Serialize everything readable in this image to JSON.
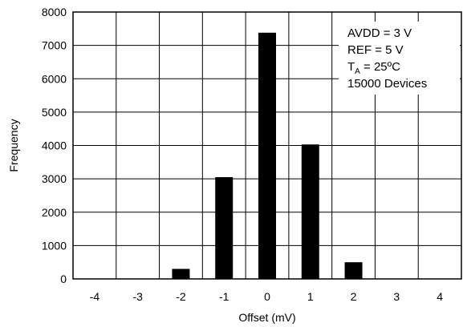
{
  "chart_data": {
    "type": "bar",
    "categories": [
      "-4",
      "-3",
      "-2",
      "-1",
      "0",
      "1",
      "2",
      "3",
      "4"
    ],
    "x": [
      -4,
      -3,
      -2,
      -1,
      0,
      1,
      2,
      3,
      4
    ],
    "values": [
      0,
      0,
      300,
      3050,
      7380,
      4030,
      500,
      0,
      0
    ],
    "title": "",
    "xlabel": "Offset (mV)",
    "ylabel": "Frequency",
    "ylim": [
      0,
      8000
    ],
    "xlim": [
      -4.5,
      4.5
    ],
    "yticks": [
      0,
      1000,
      2000,
      3000,
      4000,
      5000,
      6000,
      7000,
      8000
    ],
    "xticks": [
      -4,
      -3,
      -2,
      -1,
      0,
      1,
      2,
      3,
      4
    ],
    "grid": true,
    "bar_color": "#000000",
    "grid_color": "#000000",
    "annotations": [
      {
        "text": "AVDD = 3 V"
      },
      {
        "text": "REF = 5 V"
      },
      {
        "prefix": "T",
        "sub": "A",
        "text": " = 25ºC"
      },
      {
        "text": "15000 Devices"
      }
    ]
  }
}
